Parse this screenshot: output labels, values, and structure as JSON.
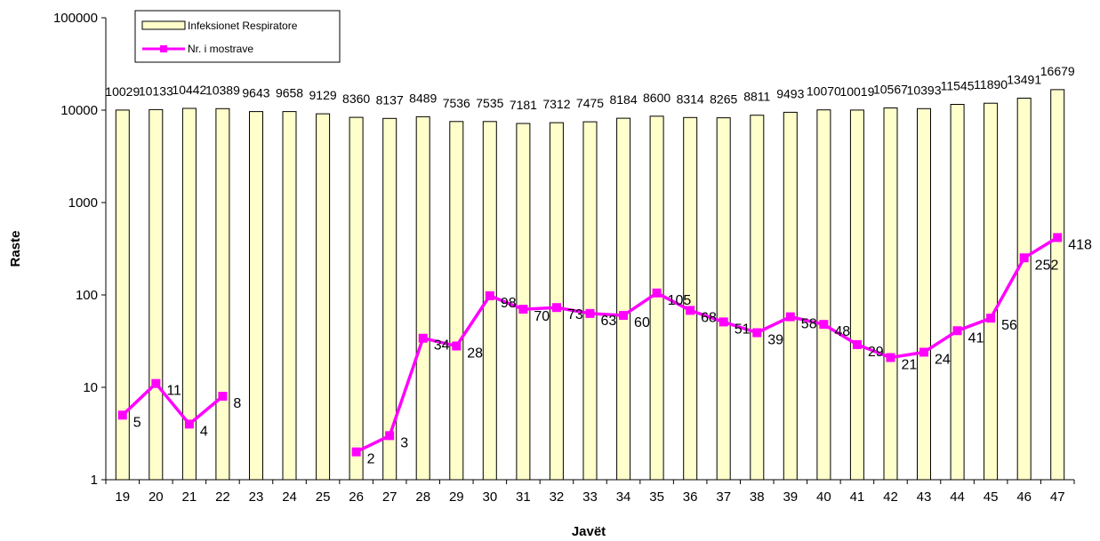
{
  "chart_data": {
    "type": "bar",
    "categories": [
      "19",
      "20",
      "21",
      "22",
      "23",
      "24",
      "25",
      "26",
      "27",
      "28",
      "29",
      "30",
      "31",
      "32",
      "33",
      "34",
      "35",
      "36",
      "37",
      "38",
      "39",
      "40",
      "41",
      "42",
      "43",
      "44",
      "45",
      "46",
      "47"
    ],
    "series": [
      {
        "name": "Infeksionet Respiratore",
        "type": "bar",
        "color": "#FFFFCC",
        "values": [
          10029,
          10133,
          10442,
          10389,
          9643,
          9658,
          9129,
          8360,
          8137,
          8489,
          7536,
          7535,
          7181,
          7312,
          7475,
          8184,
          8600,
          8314,
          8265,
          8811,
          9493,
          10070,
          10019,
          10567,
          10393,
          11545,
          11890,
          13491,
          16679
        ],
        "labels": [
          "10029",
          "10133",
          "10442",
          "10389",
          "9643",
          "9658",
          "9129",
          "8360",
          "8137",
          "8489",
          "7536",
          "7535",
          "7181",
          "7312",
          "7475",
          "8184",
          "8600",
          "8314",
          "8265",
          "8811",
          "9493",
          "10070",
          "10019",
          "10567",
          "10393",
          "11545",
          "11890",
          "13491",
          "16679"
        ]
      },
      {
        "name": "Nr. i mostrave",
        "type": "line",
        "color": "#FF00FF",
        "values": [
          5,
          11,
          4,
          8,
          null,
          null,
          null,
          2,
          3,
          34,
          28,
          98,
          70,
          73,
          63,
          60,
          105,
          68,
          51,
          39,
          58,
          48,
          29,
          21,
          24,
          41,
          56,
          252,
          418
        ]
      }
    ],
    "xlabel": "Javët",
    "ylabel": "Raste",
    "yscale": "log",
    "ylim": [
      1,
      100000
    ],
    "yticks": [
      "1",
      "10",
      "100",
      "1000",
      "10000",
      "100000"
    ],
    "legend_position": "top-left",
    "grid": false
  }
}
